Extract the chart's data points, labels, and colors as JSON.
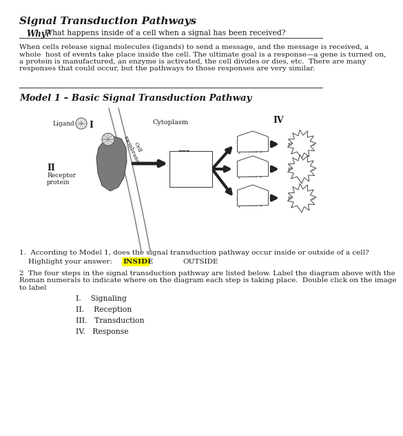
{
  "title": "Signal Transduction Pathways",
  "subtitle_bold": "Why?",
  "subtitle_rest": "What happens inside of a cell when a signal has been received?",
  "body_text": "When cells release signal molecules (ligands) to send a message, and the message is received, a\nwhole  host of events take place inside the cell. The ultimate goal is a response—a gene is turned on,\na protein is manufactured, an enzyme is activated, the cell divides or dies, etc.  There are many\nresponses that could occur, but the pathways to those responses are very similar.",
  "model_title": "Model 1 – Basic Signal Transduction Pathway",
  "q1_line1": "1.  According to Model 1, does the signal transduction pathway occur inside or outside of a cell?",
  "q1_line2": "    Highlight your answer:",
  "inside_text": "INSIDE",
  "outside_text": "OUTSIDE",
  "q2_text": "2  The four steps in the signal transduction pathway are listed below. Label the diagram above with the\nRoman numerals to indicate where on the diagram each step is taking place.  Double click on the image\nto label",
  "list_items": [
    "I.    Signaling",
    "II.    Reception",
    "III.   Transduction",
    "IV.   Response"
  ],
  "bg_color": "#ffffff",
  "text_color": "#1a1a1a",
  "highlight_color": "#ffff00"
}
